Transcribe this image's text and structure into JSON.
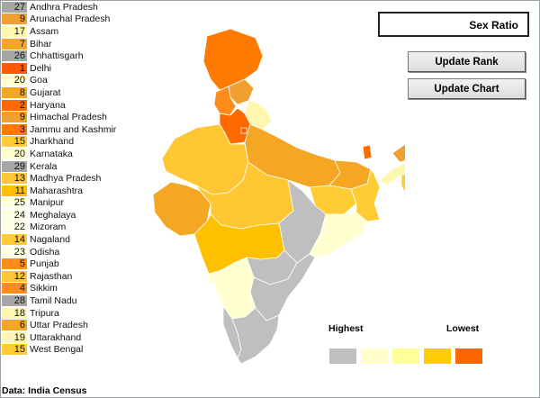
{
  "title": "Sex Ratio",
  "buttons": {
    "update_rank": "Update Rank",
    "update_chart": "Update Chart"
  },
  "legend": {
    "highest": "Highest",
    "lowest": "Lowest",
    "colors": [
      "#bfbfbf",
      "#ffffcc",
      "#ffff99",
      "#ffcc00",
      "#ff6600"
    ]
  },
  "source": "Data: India Census",
  "states": [
    {
      "rank": "27",
      "name": "Andhra Pradesh",
      "color": "#a6a6a6"
    },
    {
      "rank": "9",
      "name": "Arunachal Pradesh",
      "color": "#f0a030"
    },
    {
      "rank": "17",
      "name": "Assam",
      "color": "#fff6b0"
    },
    {
      "rank": "7",
      "name": "Bihar",
      "color": "#f5a623"
    },
    {
      "rank": "26",
      "name": "Chhattisgarh",
      "color": "#a6a6a6"
    },
    {
      "rank": "1",
      "name": "Delhi",
      "color": "#ff5a00"
    },
    {
      "rank": "20",
      "name": "Goa",
      "color": "#ffffd0"
    },
    {
      "rank": "8",
      "name": "Gujarat",
      "color": "#f5a623"
    },
    {
      "rank": "2",
      "name": "Haryana",
      "color": "#ff6a00"
    },
    {
      "rank": "9",
      "name": "Himachal Pradesh",
      "color": "#f0a030"
    },
    {
      "rank": "3",
      "name": "Jammu and Kashmir",
      "color": "#ff7a00"
    },
    {
      "rank": "15",
      "name": "Jharkhand",
      "color": "#ffcc33"
    },
    {
      "rank": "20",
      "name": "Karnataka",
      "color": "#ffffd0"
    },
    {
      "rank": "29",
      "name": "Kerala",
      "color": "#a6a6a6"
    },
    {
      "rank": "13",
      "name": "Madhya Pradesh",
      "color": "#ffc733"
    },
    {
      "rank": "11",
      "name": "Maharashtra",
      "color": "#ffc000"
    },
    {
      "rank": "25",
      "name": "Manipur",
      "color": "#ffffe6"
    },
    {
      "rank": "24",
      "name": "Meghalaya",
      "color": "#ffffe6"
    },
    {
      "rank": "22",
      "name": "Mizoram",
      "color": "#ffffe6"
    },
    {
      "rank": "14",
      "name": "Nagaland",
      "color": "#ffcc33"
    },
    {
      "rank": "23",
      "name": "Odisha",
      "color": "#ffffe6"
    },
    {
      "rank": "5",
      "name": "Punjab",
      "color": "#ff8c1a"
    },
    {
      "rank": "12",
      "name": "Rajasthan",
      "color": "#ffc733"
    },
    {
      "rank": "4",
      "name": "Sikkim",
      "color": "#ff8c1a"
    },
    {
      "rank": "28",
      "name": "Tamil Nadu",
      "color": "#a6a6a6"
    },
    {
      "rank": "18",
      "name": "Tripura",
      "color": "#fff6b0"
    },
    {
      "rank": "6",
      "name": "Uttar Pradesh",
      "color": "#f5a623"
    },
    {
      "rank": "19",
      "name": "Uttarakhand",
      "color": "#fff6b0"
    },
    {
      "rank": "15",
      "name": "West Bengal",
      "color": "#ffcc33"
    }
  ],
  "map_fills": {
    "jk": "#ff7a00",
    "hp": "#f0a030",
    "pb": "#ff8c1a",
    "uk": "#fff6b0",
    "hr": "#ff6a00",
    "dl": "#ff5a00",
    "rj": "#ffc733",
    "up": "#f5a623",
    "gj": "#f5a623",
    "mp": "#ffc733",
    "br": "#f5a623",
    "jh": "#ffcc33",
    "wb": "#ffcc33",
    "cg": "#bfbfbf",
    "od": "#ffffd0",
    "mh": "#ffc000",
    "ts": "#bfbfbf",
    "ap": "#bfbfbf",
    "ka": "#ffffd0",
    "ga": "#ffffd0",
    "kl": "#bfbfbf",
    "tn": "#bfbfbf",
    "sk": "#ff6a00",
    "ar": "#f0a030",
    "as": "#fff6b0",
    "ne": "#ffcc33"
  }
}
